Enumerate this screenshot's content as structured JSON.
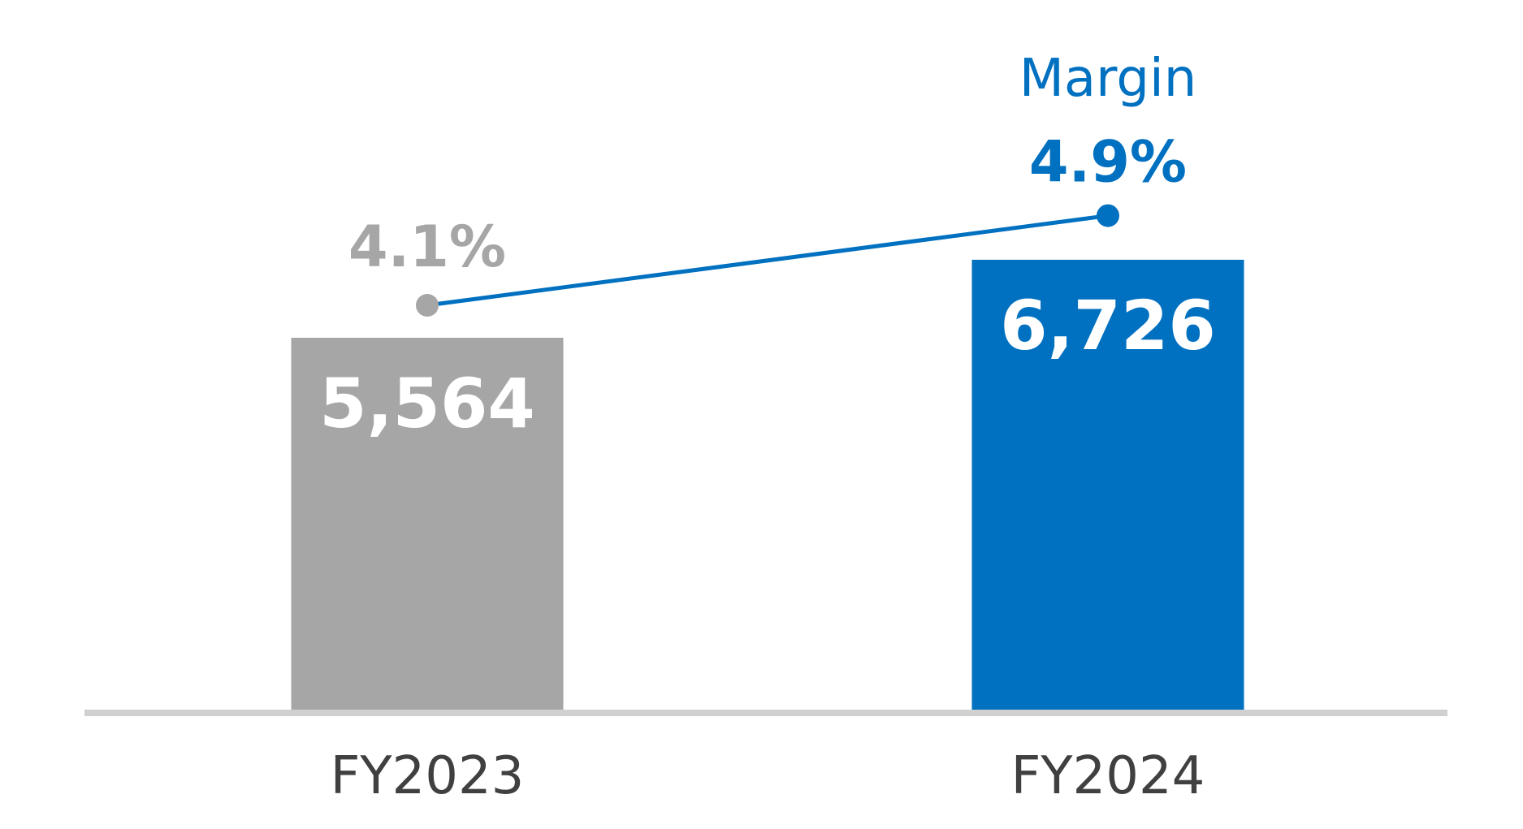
{
  "chart_data": {
    "type": "bar",
    "categories": [
      "FY2023",
      "FY2024"
    ],
    "values": [
      5564,
      6726
    ],
    "value_labels": [
      "5,564",
      "6,726"
    ],
    "bar_colors": [
      "#a6a6a6",
      "#0070c0"
    ],
    "line_series": {
      "name": "Margin",
      "values": [
        4.1,
        4.9
      ],
      "labels": [
        "4.1%",
        "4.9%"
      ],
      "colors": [
        "#a6a6a6",
        "#0070c0"
      ],
      "line_color": "#0070c0"
    },
    "axis_color": "#d0d0d0",
    "grid": false,
    "legend": "none"
  }
}
